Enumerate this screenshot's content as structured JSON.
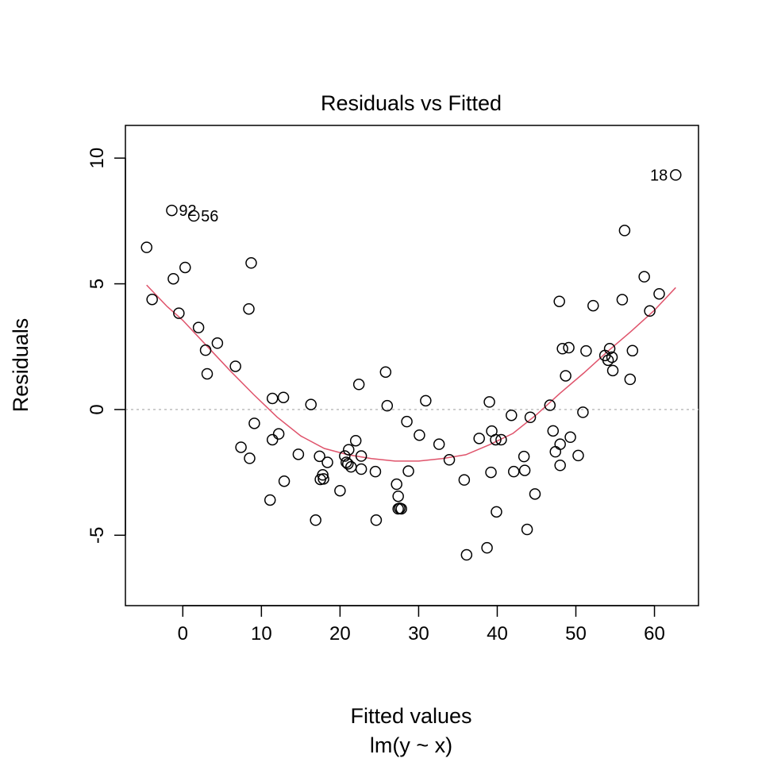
{
  "chart_data": {
    "type": "scatter",
    "title": "Residuals vs Fitted",
    "xlabel": "Fitted values",
    "subtitle": "lm(y ~ x)",
    "ylabel": "Residuals",
    "xlim": [
      -7.3,
      65.6
    ],
    "ylim": [
      -7.8,
      11.3
    ],
    "x_ticks": [
      0,
      10,
      20,
      30,
      40,
      50,
      60
    ],
    "x_tick_labels": [
      "0",
      "10",
      "20",
      "30",
      "40",
      "50",
      "60"
    ],
    "y_ticks": [
      -5,
      0,
      5,
      10
    ],
    "y_tick_labels": [
      "-5",
      "0",
      "5",
      "10"
    ],
    "reference_line": {
      "y": 0,
      "color": "#bebebe",
      "style": "dotted"
    },
    "smooth_color": "#df536b",
    "point_color": "#000000",
    "points": [
      {
        "x": -4.6,
        "y": 6.45
      },
      {
        "x": -3.9,
        "y": 4.38
      },
      {
        "x": -1.4,
        "y": 7.92,
        "label": "92"
      },
      {
        "x": -1.2,
        "y": 5.2
      },
      {
        "x": -0.5,
        "y": 3.83
      },
      {
        "x": 0.3,
        "y": 5.65
      },
      {
        "x": 1.4,
        "y": 7.7,
        "label": "56"
      },
      {
        "x": 2.0,
        "y": 3.26
      },
      {
        "x": 2.9,
        "y": 2.36
      },
      {
        "x": 3.1,
        "y": 1.42
      },
      {
        "x": 4.4,
        "y": 2.64
      },
      {
        "x": 6.7,
        "y": 1.72
      },
      {
        "x": 7.4,
        "y": -1.5
      },
      {
        "x": 8.4,
        "y": 4.0
      },
      {
        "x": 8.5,
        "y": -1.94
      },
      {
        "x": 8.7,
        "y": 5.83
      },
      {
        "x": 9.1,
        "y": -0.55
      },
      {
        "x": 11.1,
        "y": -3.6
      },
      {
        "x": 11.4,
        "y": 0.44
      },
      {
        "x": 11.4,
        "y": -1.2
      },
      {
        "x": 12.2,
        "y": -0.97
      },
      {
        "x": 12.8,
        "y": 0.48
      },
      {
        "x": 12.9,
        "y": -2.85
      },
      {
        "x": 14.7,
        "y": -1.78
      },
      {
        "x": 16.3,
        "y": 0.2
      },
      {
        "x": 16.9,
        "y": -4.4
      },
      {
        "x": 17.4,
        "y": -1.86
      },
      {
        "x": 17.5,
        "y": -2.78
      },
      {
        "x": 17.8,
        "y": -2.6
      },
      {
        "x": 17.9,
        "y": -2.76
      },
      {
        "x": 18.4,
        "y": -2.1
      },
      {
        "x": 20.0,
        "y": -3.23
      },
      {
        "x": 20.6,
        "y": -1.85
      },
      {
        "x": 20.8,
        "y": -2.1
      },
      {
        "x": 21.0,
        "y": -2.16
      },
      {
        "x": 21.1,
        "y": -1.6
      },
      {
        "x": 21.4,
        "y": -2.28
      },
      {
        "x": 22.0,
        "y": -1.24
      },
      {
        "x": 22.4,
        "y": 1.0
      },
      {
        "x": 22.7,
        "y": -1.85
      },
      {
        "x": 22.7,
        "y": -2.37
      },
      {
        "x": 24.5,
        "y": -2.47
      },
      {
        "x": 24.6,
        "y": -4.4
      },
      {
        "x": 25.8,
        "y": 1.49
      },
      {
        "x": 26.0,
        "y": 0.15
      },
      {
        "x": 27.2,
        "y": -2.97
      },
      {
        "x": 27.4,
        "y": -3.45
      },
      {
        "x": 27.4,
        "y": -3.95
      },
      {
        "x": 27.6,
        "y": -3.93
      },
      {
        "x": 27.8,
        "y": -3.95
      },
      {
        "x": 28.5,
        "y": -0.48
      },
      {
        "x": 28.7,
        "y": -2.45
      },
      {
        "x": 30.1,
        "y": -1.02
      },
      {
        "x": 30.9,
        "y": 0.35
      },
      {
        "x": 32.6,
        "y": -1.38
      },
      {
        "x": 33.9,
        "y": -2.0
      },
      {
        "x": 35.8,
        "y": -2.8
      },
      {
        "x": 36.1,
        "y": -5.78
      },
      {
        "x": 37.7,
        "y": -1.15
      },
      {
        "x": 38.7,
        "y": -5.5
      },
      {
        "x": 39.0,
        "y": 0.3
      },
      {
        "x": 39.2,
        "y": -2.5
      },
      {
        "x": 39.3,
        "y": -0.86
      },
      {
        "x": 39.8,
        "y": -1.2
      },
      {
        "x": 39.9,
        "y": -4.07
      },
      {
        "x": 40.5,
        "y": -1.2
      },
      {
        "x": 41.8,
        "y": -0.23
      },
      {
        "x": 42.1,
        "y": -2.47
      },
      {
        "x": 43.4,
        "y": -1.87
      },
      {
        "x": 43.5,
        "y": -2.42
      },
      {
        "x": 43.8,
        "y": -4.77
      },
      {
        "x": 44.2,
        "y": -0.31
      },
      {
        "x": 44.8,
        "y": -3.36
      },
      {
        "x": 46.7,
        "y": 0.17
      },
      {
        "x": 47.1,
        "y": -0.85
      },
      {
        "x": 47.4,
        "y": -1.68
      },
      {
        "x": 47.9,
        "y": 4.3
      },
      {
        "x": 48.0,
        "y": -1.38
      },
      {
        "x": 48.0,
        "y": -2.22
      },
      {
        "x": 48.3,
        "y": 2.42
      },
      {
        "x": 48.7,
        "y": 1.34
      },
      {
        "x": 49.1,
        "y": 2.46
      },
      {
        "x": 49.3,
        "y": -1.1
      },
      {
        "x": 50.3,
        "y": -1.83
      },
      {
        "x": 50.9,
        "y": -0.11
      },
      {
        "x": 51.3,
        "y": 2.33
      },
      {
        "x": 52.2,
        "y": 4.13
      },
      {
        "x": 53.7,
        "y": 2.15
      },
      {
        "x": 54.1,
        "y": 1.96
      },
      {
        "x": 54.3,
        "y": 2.42
      },
      {
        "x": 54.6,
        "y": 2.08
      },
      {
        "x": 54.7,
        "y": 1.55
      },
      {
        "x": 55.9,
        "y": 4.37
      },
      {
        "x": 56.2,
        "y": 7.12
      },
      {
        "x": 56.9,
        "y": 1.2
      },
      {
        "x": 57.2,
        "y": 2.34
      },
      {
        "x": 58.7,
        "y": 5.28
      },
      {
        "x": 59.4,
        "y": 3.92
      },
      {
        "x": 60.6,
        "y": 4.6
      },
      {
        "x": 62.7,
        "y": 9.33,
        "label": "18"
      }
    ],
    "smooth": [
      {
        "x": -4.6,
        "y": 4.95
      },
      {
        "x": -2,
        "y": 4.1
      },
      {
        "x": 0,
        "y": 3.55
      },
      {
        "x": 3,
        "y": 2.55
      },
      {
        "x": 6,
        "y": 1.55
      },
      {
        "x": 9,
        "y": 0.6
      },
      {
        "x": 12,
        "y": -0.3
      },
      {
        "x": 15,
        "y": -1.05
      },
      {
        "x": 18,
        "y": -1.55
      },
      {
        "x": 21,
        "y": -1.8
      },
      {
        "x": 24,
        "y": -1.95
      },
      {
        "x": 27,
        "y": -2.05
      },
      {
        "x": 30,
        "y": -2.05
      },
      {
        "x": 33,
        "y": -1.95
      },
      {
        "x": 36,
        "y": -1.8
      },
      {
        "x": 39,
        "y": -1.4
      },
      {
        "x": 42,
        "y": -0.95
      },
      {
        "x": 45,
        "y": -0.2
      },
      {
        "x": 48,
        "y": 0.65
      },
      {
        "x": 51,
        "y": 1.45
      },
      {
        "x": 54,
        "y": 2.3
      },
      {
        "x": 57,
        "y": 3.1
      },
      {
        "x": 60,
        "y": 3.95
      },
      {
        "x": 62.7,
        "y": 4.85
      }
    ]
  }
}
